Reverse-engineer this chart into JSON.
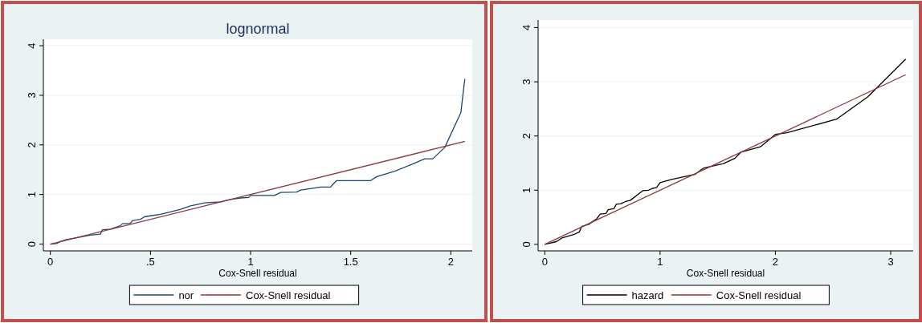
{
  "chart_data": [
    {
      "type": "line",
      "title": "lognormal",
      "xlabel": "Cox-Snell residual",
      "xlim": [
        -0.035,
        2.107
      ],
      "ylim": [
        -0.137,
        4.13
      ],
      "xticks": [
        0,
        {
          "value": 0.5,
          "label": ".5"
        },
        1,
        1.5,
        2
      ],
      "yticks": [
        0,
        1,
        2,
        3,
        4
      ],
      "grid": "y",
      "legend": "bottom",
      "series": [
        {
          "name": "nor",
          "color": "#1a476f",
          "x": [
            0,
            0.03,
            0.05,
            0.08,
            0.12,
            0.2,
            0.25,
            0.26,
            0.3,
            0.35,
            0.36,
            0.4,
            0.41,
            0.45,
            0.47,
            0.5,
            0.55,
            0.6,
            0.65,
            0.7,
            0.77,
            0.85,
            0.9,
            0.95,
            0.99,
            1.0,
            1.12,
            1.15,
            1.23,
            1.25,
            1.35,
            1.4,
            1.41,
            1.43,
            1.6,
            1.63,
            1.72,
            1.8,
            1.87,
            1.91,
            1.97,
            2.05,
            2.07
          ],
          "values": [
            0,
            0.01,
            0.05,
            0.09,
            0.12,
            0.18,
            0.2,
            0.29,
            0.3,
            0.37,
            0.41,
            0.42,
            0.47,
            0.5,
            0.55,
            0.57,
            0.6,
            0.65,
            0.7,
            0.77,
            0.83,
            0.85,
            0.9,
            0.93,
            0.94,
            0.98,
            0.98,
            1.04,
            1.05,
            1.09,
            1.15,
            1.15,
            1.2,
            1.28,
            1.28,
            1.36,
            1.47,
            1.6,
            1.72,
            1.72,
            1.95,
            2.65,
            3.33
          ]
        },
        {
          "name": "Cox-Snell residual",
          "color": "#90353b",
          "x": [
            0,
            2.07
          ],
          "values": [
            0,
            2.07
          ]
        }
      ]
    },
    {
      "type": "line",
      "xlabel": "Cox-Snell residual",
      "xlim": [
        -0.058,
        3.195
      ],
      "ylim": [
        -0.12,
        4.14
      ],
      "xticks": [
        0,
        1,
        2,
        3
      ],
      "yticks": [
        0,
        1,
        2,
        3,
        4
      ],
      "grid": "y",
      "legend": "bottom",
      "series": [
        {
          "name": "hazard",
          "color": "#000000",
          "x": [
            0,
            0.1,
            0.15,
            0.25,
            0.3,
            0.32,
            0.38,
            0.45,
            0.48,
            0.53,
            0.55,
            0.6,
            0.62,
            0.66,
            0.7,
            0.74,
            0.82,
            0.85,
            0.9,
            0.93,
            0.97,
            1.0,
            1.1,
            1.3,
            1.38,
            1.55,
            1.65,
            1.7,
            1.87,
            2.0,
            2.1,
            2.53,
            2.8,
            3.13
          ],
          "values": [
            0,
            0.05,
            0.12,
            0.18,
            0.23,
            0.33,
            0.37,
            0.47,
            0.56,
            0.57,
            0.64,
            0.66,
            0.74,
            0.75,
            0.79,
            0.81,
            0.94,
            0.99,
            1.0,
            1.03,
            1.05,
            1.14,
            1.2,
            1.29,
            1.41,
            1.49,
            1.59,
            1.7,
            1.8,
            2.03,
            2.06,
            2.31,
            2.72,
            3.42
          ]
        },
        {
          "name": "Cox-Snell residual",
          "color": "#90353b",
          "x": [
            0,
            3.13
          ],
          "values": [
            0,
            3.13
          ]
        }
      ]
    }
  ]
}
